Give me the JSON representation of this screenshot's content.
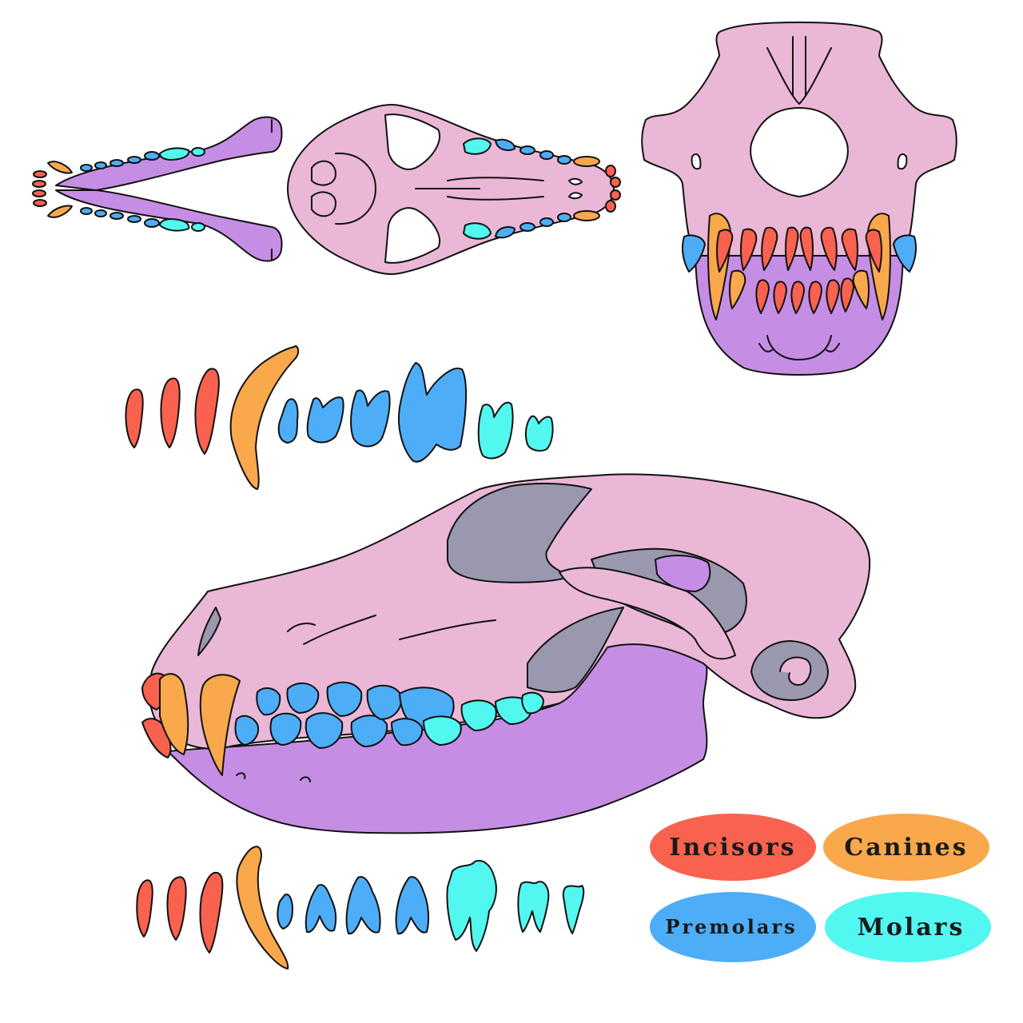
{
  "colors": {
    "incisors": "#f8624f",
    "canines": "#f9a84c",
    "premolars": "#4eadf7",
    "molars": "#52f7f0",
    "skull": "#ebb7d6",
    "mandible": "#c58ee4",
    "shadow": "#9a98ae",
    "outline": "#111111"
  },
  "legend": {
    "incisors": {
      "label": "Incisors",
      "icon": "ellipse-swatch"
    },
    "canines": {
      "label": "Canines",
      "icon": "ellipse-swatch"
    },
    "premolars": {
      "label": "Premolars",
      "icon": "ellipse-swatch"
    },
    "molars": {
      "label": "Molars",
      "icon": "ellipse-swatch"
    }
  }
}
